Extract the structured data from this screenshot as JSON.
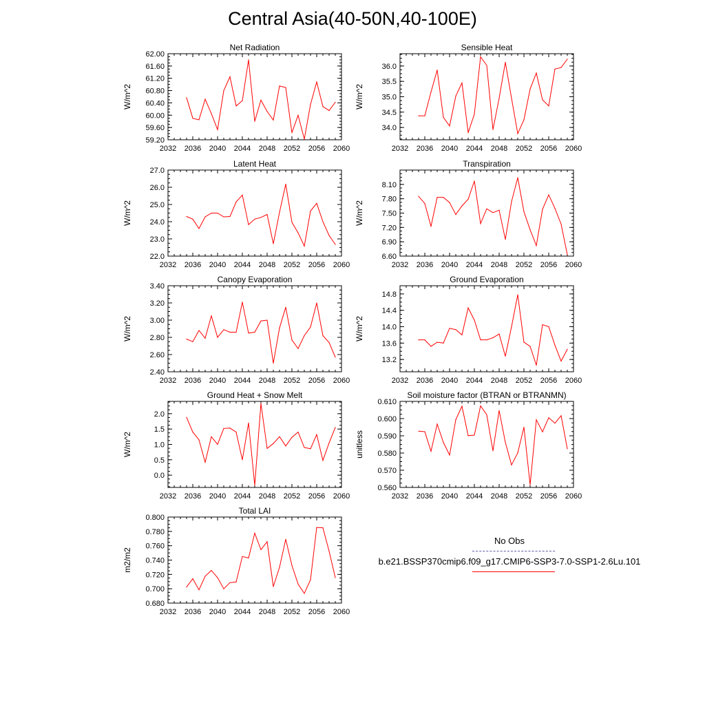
{
  "page": {
    "title": "Central Asia(40-50N,40-100E)"
  },
  "legend": {
    "items": [
      {
        "label": "No Obs",
        "color": "#5a5aa8",
        "style": "dashed"
      },
      {
        "label": "b.e21.BSSP370cmip6.f09_g17.CMIP6-SSP3-7.0-SSP1-2.6Lu.101",
        "color": "#ff0000",
        "style": "solid"
      }
    ]
  },
  "chart_data": [
    {
      "type": "line",
      "title": "Net Radiation",
      "ylabel": "W/m^2",
      "xlim": [
        2032,
        2060
      ],
      "xticks": [
        2032,
        2036,
        2040,
        2044,
        2048,
        2052,
        2056,
        2060
      ],
      "ylim": [
        59.2,
        62.0
      ],
      "yticks": [
        59.2,
        59.6,
        60.0,
        60.4,
        60.8,
        61.2,
        61.6,
        62.0
      ],
      "ydecimals": 2,
      "series": [
        {
          "color": "#ff0000",
          "x": [
            2035,
            2036,
            2037,
            2038,
            2039,
            2040,
            2041,
            2042,
            2043,
            2044,
            2045,
            2046,
            2047,
            2048,
            2049,
            2050,
            2051,
            2052,
            2053,
            2054,
            2055,
            2056,
            2057,
            2058,
            2059
          ],
          "values": [
            60.57,
            59.9,
            59.85,
            60.52,
            60.05,
            59.53,
            60.8,
            61.25,
            60.3,
            60.47,
            61.8,
            59.8,
            60.49,
            60.12,
            59.84,
            60.95,
            60.9,
            59.43,
            60.0,
            59.22,
            60.35,
            61.08,
            60.28,
            60.15,
            60.42
          ]
        }
      ]
    },
    {
      "type": "line",
      "title": "Sensible Heat",
      "ylabel": "W/m^2",
      "xlim": [
        2032,
        2060
      ],
      "xticks": [
        2032,
        2036,
        2040,
        2044,
        2048,
        2052,
        2056,
        2060
      ],
      "ylim": [
        33.6,
        36.4
      ],
      "yticks": [
        34.0,
        34.5,
        35.0,
        35.5,
        36.0
      ],
      "ydecimals": 1,
      "series": [
        {
          "color": "#ff0000",
          "x": [
            2035,
            2036,
            2037,
            2038,
            2039,
            2040,
            2041,
            2042,
            2043,
            2044,
            2045,
            2046,
            2047,
            2048,
            2049,
            2050,
            2051,
            2052,
            2053,
            2054,
            2055,
            2056,
            2057,
            2058,
            2059
          ],
          "values": [
            34.38,
            34.38,
            35.15,
            35.87,
            34.33,
            34.05,
            35.02,
            35.45,
            33.83,
            34.43,
            36.3,
            36.02,
            33.93,
            34.95,
            36.12,
            34.95,
            33.8,
            34.25,
            35.25,
            35.77,
            34.9,
            34.7,
            35.9,
            35.95,
            36.22
          ]
        }
      ]
    },
    {
      "type": "line",
      "title": "Latent Heat",
      "ylabel": "W/m^2",
      "xlim": [
        2032,
        2060
      ],
      "xticks": [
        2032,
        2036,
        2040,
        2044,
        2048,
        2052,
        2056,
        2060
      ],
      "ylim": [
        22.0,
        27.0
      ],
      "yticks": [
        22.0,
        23.0,
        24.0,
        25.0,
        26.0,
        27.0
      ],
      "ydecimals": 1,
      "series": [
        {
          "color": "#ff0000",
          "x": [
            2035,
            2036,
            2037,
            2038,
            2039,
            2040,
            2041,
            2042,
            2043,
            2044,
            2045,
            2046,
            2047,
            2048,
            2049,
            2050,
            2051,
            2052,
            2053,
            2054,
            2055,
            2056,
            2057,
            2058,
            2059
          ],
          "values": [
            24.3,
            24.15,
            23.6,
            24.28,
            24.5,
            24.5,
            24.28,
            24.3,
            25.15,
            25.55,
            23.83,
            24.15,
            24.25,
            24.42,
            22.72,
            24.55,
            26.18,
            23.97,
            23.35,
            22.58,
            24.62,
            25.07,
            24.0,
            23.2,
            22.68
          ]
        }
      ]
    },
    {
      "type": "line",
      "title": "Transpiration",
      "ylabel": "W/m^2",
      "xlim": [
        2032,
        2060
      ],
      "xticks": [
        2032,
        2036,
        2040,
        2044,
        2048,
        2052,
        2056,
        2060
      ],
      "ylim": [
        6.6,
        8.4
      ],
      "yticks": [
        6.6,
        6.9,
        7.2,
        7.5,
        7.8,
        8.1
      ],
      "ydecimals": 2,
      "series": [
        {
          "color": "#ff0000",
          "x": [
            2035,
            2036,
            2037,
            2038,
            2039,
            2040,
            2041,
            2042,
            2043,
            2044,
            2045,
            2046,
            2047,
            2048,
            2049,
            2050,
            2051,
            2052,
            2053,
            2054,
            2055,
            2056,
            2057,
            2058,
            2059
          ],
          "values": [
            7.85,
            7.7,
            7.22,
            7.83,
            7.83,
            7.72,
            7.47,
            7.65,
            7.79,
            8.17,
            7.28,
            7.59,
            7.51,
            7.56,
            6.95,
            7.74,
            8.24,
            7.53,
            7.15,
            6.82,
            7.58,
            7.88,
            7.6,
            7.27,
            6.63
          ]
        }
      ]
    },
    {
      "type": "line",
      "title": "Canopy Evaporation",
      "ylabel": "W/m^2",
      "xlim": [
        2032,
        2060
      ],
      "xticks": [
        2032,
        2036,
        2040,
        2044,
        2048,
        2052,
        2056,
        2060
      ],
      "ylim": [
        2.4,
        3.4
      ],
      "yticks": [
        2.4,
        2.6,
        2.8,
        3.0,
        3.2,
        3.4
      ],
      "ydecimals": 2,
      "series": [
        {
          "color": "#ff0000",
          "x": [
            2035,
            2036,
            2037,
            2038,
            2039,
            2040,
            2041,
            2042,
            2043,
            2044,
            2045,
            2046,
            2047,
            2048,
            2049,
            2050,
            2051,
            2052,
            2053,
            2054,
            2055,
            2056,
            2057,
            2058,
            2059
          ],
          "values": [
            2.78,
            2.75,
            2.88,
            2.79,
            3.05,
            2.8,
            2.89,
            2.86,
            2.86,
            3.21,
            2.85,
            2.86,
            2.99,
            3.0,
            2.5,
            2.91,
            3.15,
            2.77,
            2.67,
            2.82,
            2.92,
            3.2,
            2.82,
            2.74,
            2.57
          ]
        }
      ]
    },
    {
      "type": "line",
      "title": "Ground Evaporation",
      "ylabel": "W/m^2",
      "xlim": [
        2032,
        2060
      ],
      "xticks": [
        2032,
        2036,
        2040,
        2044,
        2048,
        2052,
        2056,
        2060
      ],
      "ylim": [
        12.9,
        15.0
      ],
      "yticks": [
        13.2,
        13.6,
        14.0,
        14.4,
        14.8
      ],
      "ydecimals": 1,
      "series": [
        {
          "color": "#ff0000",
          "x": [
            2035,
            2036,
            2037,
            2038,
            2039,
            2040,
            2041,
            2042,
            2043,
            2044,
            2045,
            2046,
            2047,
            2048,
            2049,
            2050,
            2051,
            2052,
            2053,
            2054,
            2055,
            2056,
            2057,
            2058,
            2059
          ],
          "values": [
            13.68,
            13.68,
            13.52,
            13.62,
            13.6,
            13.96,
            13.93,
            13.8,
            14.46,
            14.16,
            13.68,
            13.68,
            13.73,
            13.82,
            13.28,
            14.0,
            14.78,
            13.62,
            13.52,
            13.06,
            14.05,
            14.0,
            13.55,
            13.16,
            13.45
          ]
        }
      ]
    },
    {
      "type": "line",
      "title": "Ground Heat + Snow Melt",
      "ylabel": "W/m^2",
      "xlim": [
        2032,
        2060
      ],
      "xticks": [
        2032,
        2036,
        2040,
        2044,
        2048,
        2052,
        2056,
        2060
      ],
      "ylim": [
        -0.4,
        2.4
      ],
      "yticks": [
        0.0,
        0.5,
        1.0,
        1.5,
        2.0
      ],
      "ydecimals": 1,
      "series": [
        {
          "color": "#ff0000",
          "x": [
            2035,
            2036,
            2037,
            2038,
            2039,
            2040,
            2041,
            2042,
            2043,
            2044,
            2045,
            2046,
            2047,
            2048,
            2049,
            2050,
            2051,
            2052,
            2053,
            2054,
            2055,
            2056,
            2057,
            2058,
            2059
          ],
          "values": [
            1.88,
            1.4,
            1.15,
            0.42,
            1.25,
            1.0,
            1.52,
            1.53,
            1.4,
            0.5,
            1.7,
            -0.33,
            2.33,
            0.87,
            1.03,
            1.25,
            0.95,
            1.23,
            1.4,
            0.9,
            0.86,
            1.32,
            0.48,
            1.05,
            1.55
          ]
        }
      ]
    },
    {
      "type": "line",
      "title": "Soil moisture factor (BTRAN or BTRANMN)",
      "ylabel": "unitless",
      "xlim": [
        2032,
        2060
      ],
      "xticks": [
        2032,
        2036,
        2040,
        2044,
        2048,
        2052,
        2056,
        2060
      ],
      "ylim": [
        0.56,
        0.61
      ],
      "yticks": [
        0.56,
        0.57,
        0.58,
        0.59,
        0.6,
        0.61
      ],
      "ydecimals": 3,
      "series": [
        {
          "color": "#ff0000",
          "x": [
            2035,
            2036,
            2037,
            2038,
            2039,
            2040,
            2041,
            2042,
            2043,
            2044,
            2045,
            2046,
            2047,
            2048,
            2049,
            2050,
            2051,
            2052,
            2053,
            2054,
            2055,
            2056,
            2057,
            2058,
            2059
          ],
          "values": [
            0.5927,
            0.5924,
            0.581,
            0.5968,
            0.5862,
            0.5788,
            0.5993,
            0.6072,
            0.5901,
            0.5904,
            0.6074,
            0.6022,
            0.5813,
            0.6047,
            0.5862,
            0.5731,
            0.5801,
            0.595,
            0.5615,
            0.5993,
            0.5923,
            0.6005,
            0.5973,
            0.6017,
            0.5825
          ]
        }
      ]
    },
    {
      "type": "line",
      "title": "Total LAI",
      "ylabel": "m2/m2",
      "xlim": [
        2032,
        2060
      ],
      "xticks": [
        2032,
        2036,
        2040,
        2044,
        2048,
        2052,
        2056,
        2060
      ],
      "ylim": [
        0.68,
        0.8
      ],
      "yticks": [
        0.68,
        0.7,
        0.72,
        0.74,
        0.76,
        0.78,
        0.8
      ],
      "ydecimals": 3,
      "series": [
        {
          "color": "#ff0000",
          "x": [
            2035,
            2036,
            2037,
            2038,
            2039,
            2040,
            2041,
            2042,
            2043,
            2044,
            2045,
            2046,
            2047,
            2048,
            2049,
            2050,
            2051,
            2052,
            2053,
            2054,
            2055,
            2056,
            2057,
            2058,
            2059
          ],
          "values": [
            0.7025,
            0.714,
            0.6985,
            0.7175,
            0.7255,
            0.7155,
            0.7,
            0.7085,
            0.7095,
            0.745,
            0.743,
            0.7775,
            0.7545,
            0.7655,
            0.703,
            0.73,
            0.769,
            0.7325,
            0.7065,
            0.6935,
            0.7125,
            0.7855,
            0.785,
            0.7525,
            0.7155
          ]
        }
      ]
    }
  ]
}
